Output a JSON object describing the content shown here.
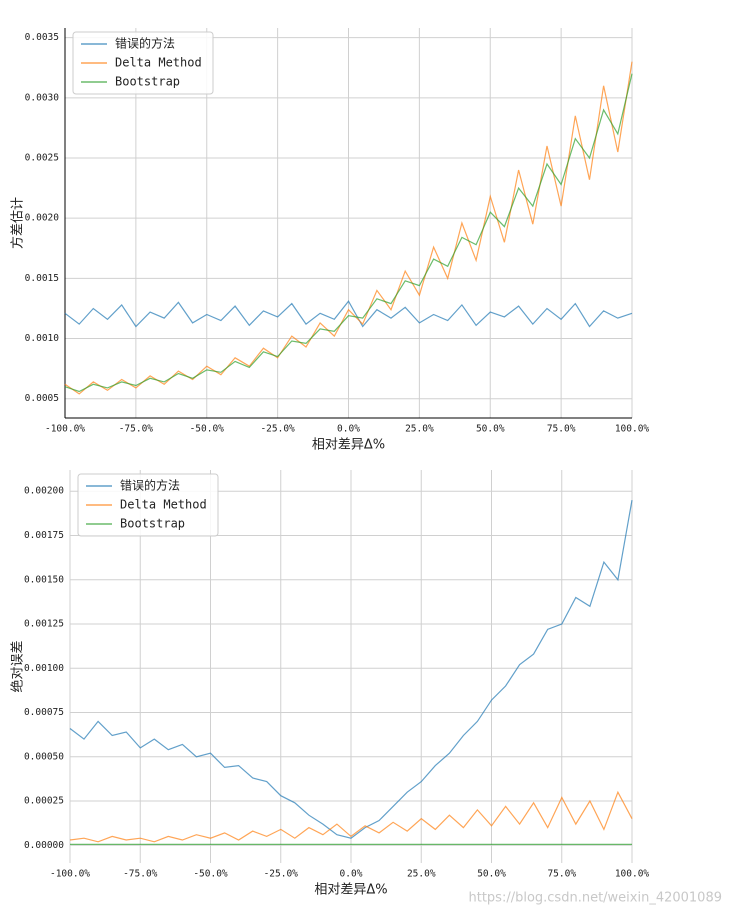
{
  "watermark": "https://blog.csdn.net/weixin_42001089",
  "chart_data": [
    {
      "type": "line",
      "xlabel": "相对差异Δ%",
      "ylabel": "方差估计",
      "grid": true,
      "legend": "upper left",
      "xlim": [
        -100,
        100
      ],
      "ylim": [
        0.00034,
        0.00358
      ],
      "xticks": [
        {
          "value": -100,
          "label": "-100.0%"
        },
        {
          "value": -75,
          "label": "-75.0%"
        },
        {
          "value": -50,
          "label": "-50.0%"
        },
        {
          "value": -25,
          "label": "-25.0%"
        },
        {
          "value": 0,
          "label": "0.0%"
        },
        {
          "value": 25,
          "label": "25.0%"
        },
        {
          "value": 50,
          "label": "50.0%"
        },
        {
          "value": 75,
          "label": "75.0%"
        },
        {
          "value": 100,
          "label": "100.0%"
        }
      ],
      "yticks": [
        0.0005,
        {
          "value": 0.001,
          "label": "0.0010"
        },
        0.0015,
        {
          "value": 0.002,
          "label": "0.0020"
        },
        0.0025,
        {
          "value": 0.003,
          "label": "0.0030"
        },
        0.0035
      ],
      "x": [
        -100,
        -95,
        -90,
        -85,
        -80,
        -75,
        -70,
        -65,
        -60,
        -55,
        -50,
        -45,
        -40,
        -35,
        -30,
        -25,
        -20,
        -15,
        -10,
        -5,
        0,
        5,
        10,
        15,
        20,
        25,
        30,
        35,
        40,
        45,
        50,
        55,
        60,
        65,
        70,
        75,
        80,
        85,
        90,
        95,
        100
      ],
      "series": [
        {
          "name": "错误的方法",
          "color": "#1f77b4",
          "values": [
            0.00121,
            0.00112,
            0.00125,
            0.00116,
            0.00128,
            0.0011,
            0.00122,
            0.00117,
            0.0013,
            0.00113,
            0.0012,
            0.00115,
            0.00127,
            0.00111,
            0.00123,
            0.00118,
            0.00129,
            0.00112,
            0.00121,
            0.00116,
            0.00131,
            0.0011,
            0.00124,
            0.00117,
            0.00126,
            0.00113,
            0.0012,
            0.00115,
            0.00128,
            0.00111,
            0.00122,
            0.00118,
            0.00127,
            0.00112,
            0.00125,
            0.00116,
            0.00129,
            0.0011,
            0.00123,
            0.00117,
            0.00121
          ]
        },
        {
          "name": "Delta Method",
          "color": "#ff7f0e",
          "values": [
            0.00062,
            0.00054,
            0.00064,
            0.00057,
            0.00066,
            0.00059,
            0.00069,
            0.00062,
            0.00073,
            0.00066,
            0.00077,
            0.0007,
            0.00084,
            0.00077,
            0.00092,
            0.00084,
            0.00102,
            0.00093,
            0.00113,
            0.00102,
            0.00124,
            0.00112,
            0.0014,
            0.00124,
            0.00156,
            0.00136,
            0.00176,
            0.0015,
            0.00196,
            0.00165,
            0.00218,
            0.0018,
            0.0024,
            0.00195,
            0.0026,
            0.0021,
            0.00285,
            0.00232,
            0.0031,
            0.00255,
            0.0033
          ]
        },
        {
          "name": "Bootstrap",
          "color": "#2ca02c",
          "values": [
            0.0006,
            0.00056,
            0.00062,
            0.00059,
            0.00064,
            0.00061,
            0.00067,
            0.00064,
            0.00071,
            0.00067,
            0.00074,
            0.00072,
            0.00081,
            0.00076,
            0.00089,
            0.00085,
            0.00098,
            0.00096,
            0.00108,
            0.00106,
            0.00119,
            0.00117,
            0.00133,
            0.00129,
            0.00148,
            0.00144,
            0.00166,
            0.0016,
            0.00184,
            0.00178,
            0.00205,
            0.00193,
            0.00225,
            0.0021,
            0.00245,
            0.00228,
            0.00266,
            0.0025,
            0.0029,
            0.0027,
            0.0032
          ]
        }
      ]
    },
    {
      "type": "line",
      "xlabel": "相对差异Δ%",
      "ylabel": "绝对误差",
      "grid": true,
      "legend": "upper left",
      "xlim": [
        -100,
        100
      ],
      "ylim": [
        -0.0001,
        0.00212
      ],
      "xticks": [
        {
          "value": -100,
          "label": "-100.0%"
        },
        {
          "value": -75,
          "label": "-75.0%"
        },
        {
          "value": -50,
          "label": "-50.0%"
        },
        {
          "value": -25,
          "label": "-25.0%"
        },
        {
          "value": 0,
          "label": "0.0%"
        },
        {
          "value": 25,
          "label": "25.0%"
        },
        {
          "value": 50,
          "label": "50.0%"
        },
        {
          "value": 75,
          "label": "75.0%"
        },
        {
          "value": 100,
          "label": "100.0%"
        }
      ],
      "yticks": [
        {
          "value": 0,
          "label": "0.00000"
        },
        0.00025,
        {
          "value": 0.0005,
          "label": "0.00050"
        },
        0.00075,
        {
          "value": 0.001,
          "label": "0.00100"
        },
        0.00125,
        {
          "value": 0.0015,
          "label": "0.00150"
        },
        0.00175,
        {
          "value": 0.002,
          "label": "0.00200"
        }
      ],
      "x": [
        -100,
        -95,
        -90,
        -85,
        -80,
        -75,
        -70,
        -65,
        -60,
        -55,
        -50,
        -45,
        -40,
        -35,
        -30,
        -25,
        -20,
        -15,
        -10,
        -5,
        0,
        5,
        10,
        15,
        20,
        25,
        30,
        35,
        40,
        45,
        50,
        55,
        60,
        65,
        70,
        75,
        80,
        85,
        90,
        95,
        100
      ],
      "series": [
        {
          "name": "错误的方法",
          "color": "#1f77b4",
          "values": [
            0.00066,
            0.0006,
            0.0007,
            0.00062,
            0.00064,
            0.00055,
            0.0006,
            0.00054,
            0.00057,
            0.0005,
            0.00052,
            0.00044,
            0.00045,
            0.00038,
            0.00036,
            0.00028,
            0.00024,
            0.00017,
            0.00012,
            6e-05,
            4e-05,
            0.0001,
            0.00014,
            0.00022,
            0.0003,
            0.00036,
            0.00045,
            0.00052,
            0.00062,
            0.0007,
            0.00082,
            0.0009,
            0.00102,
            0.00108,
            0.00122,
            0.00125,
            0.0014,
            0.00135,
            0.0016,
            0.0015,
            0.00195
          ]
        },
        {
          "name": "Delta Method",
          "color": "#ff7f0e",
          "values": [
            3e-05,
            4e-05,
            2e-05,
            5e-05,
            3e-05,
            4e-05,
            2e-05,
            5e-05,
            3e-05,
            6e-05,
            4e-05,
            7e-05,
            3e-05,
            8e-05,
            5e-05,
            9e-05,
            4e-05,
            0.0001,
            6e-05,
            0.00012,
            5e-05,
            0.00011,
            7e-05,
            0.00013,
            8e-05,
            0.00015,
            9e-05,
            0.00017,
            0.0001,
            0.0002,
            0.00011,
            0.00022,
            0.00012,
            0.00024,
            0.0001,
            0.00027,
            0.00012,
            0.00025,
            9e-05,
            0.0003,
            0.00015
          ]
        },
        {
          "name": "Bootstrap",
          "color": "#2ca02c",
          "values": [
            5e-06,
            5e-06,
            5e-06,
            5e-06,
            5e-06,
            5e-06,
            5e-06,
            5e-06,
            5e-06,
            5e-06,
            5e-06,
            5e-06,
            5e-06,
            5e-06,
            5e-06,
            5e-06,
            5e-06,
            5e-06,
            5e-06,
            5e-06,
            5e-06,
            5e-06,
            5e-06,
            5e-06,
            5e-06,
            5e-06,
            5e-06,
            5e-06,
            5e-06,
            5e-06,
            5e-06,
            5e-06,
            5e-06,
            5e-06,
            5e-06,
            5e-06,
            5e-06,
            5e-06,
            5e-06,
            5e-06,
            5e-06
          ]
        }
      ]
    }
  ]
}
